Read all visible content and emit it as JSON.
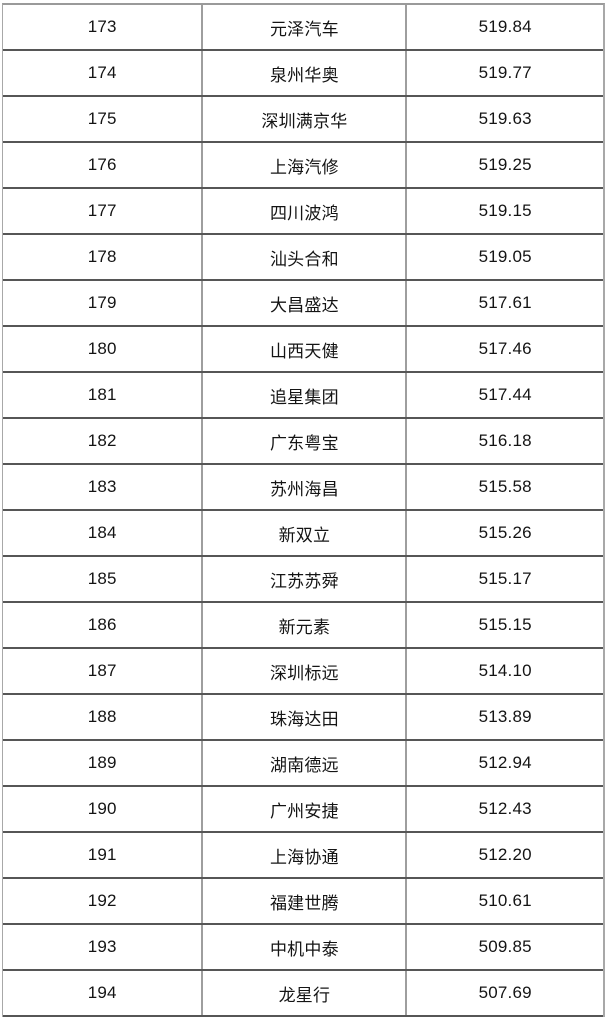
{
  "page": {
    "background_color": "#ffffff",
    "text_color": "#141414",
    "border_color_horizontal": "#565656",
    "border_color_vertical": "#9e9e9e"
  },
  "table": {
    "rows": [
      {
        "rank": "173",
        "company": "元泽汽车",
        "score": "519.84"
      },
      {
        "rank": "174",
        "company": "泉州华奥",
        "score": "519.77"
      },
      {
        "rank": "175",
        "company": "深圳满京华",
        "score": "519.63"
      },
      {
        "rank": "176",
        "company": "上海汽修",
        "score": "519.25"
      },
      {
        "rank": "177",
        "company": "四川波鸿",
        "score": "519.15"
      },
      {
        "rank": "178",
        "company": "汕头合和",
        "score": "519.05"
      },
      {
        "rank": "179",
        "company": "大昌盛达",
        "score": "517.61"
      },
      {
        "rank": "180",
        "company": "山西天健",
        "score": "517.46"
      },
      {
        "rank": "181",
        "company": "追星集团",
        "score": "517.44"
      },
      {
        "rank": "182",
        "company": "广东粤宝",
        "score": "516.18"
      },
      {
        "rank": "183",
        "company": "苏州海昌",
        "score": "515.58"
      },
      {
        "rank": "184",
        "company": "新双立",
        "score": "515.26"
      },
      {
        "rank": "185",
        "company": "江苏苏舜",
        "score": "515.17"
      },
      {
        "rank": "186",
        "company": "新元素",
        "score": "515.15"
      },
      {
        "rank": "187",
        "company": "深圳标远",
        "score": "514.10"
      },
      {
        "rank": "188",
        "company": "珠海达田",
        "score": "513.89"
      },
      {
        "rank": "189",
        "company": "湖南德远",
        "score": "512.94"
      },
      {
        "rank": "190",
        "company": "广州安捷",
        "score": "512.43"
      },
      {
        "rank": "191",
        "company": "上海协通",
        "score": "512.20"
      },
      {
        "rank": "192",
        "company": "福建世腾",
        "score": "510.61"
      },
      {
        "rank": "193",
        "company": "中机中泰",
        "score": "509.85"
      },
      {
        "rank": "194",
        "company": "龙星行",
        "score": "507.69"
      }
    ]
  }
}
